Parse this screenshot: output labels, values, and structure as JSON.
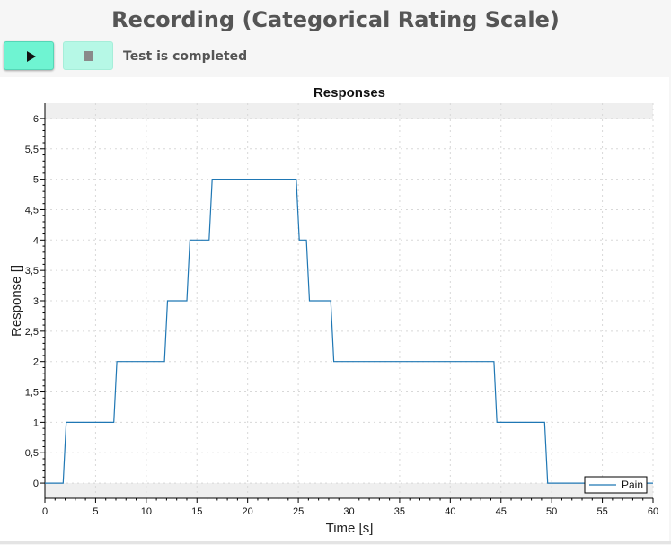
{
  "header": {
    "title": "Recording (Categorical Rating Scale)"
  },
  "toolbar": {
    "play_icon": "play-icon",
    "stop_icon": "stop-icon",
    "status_text": "Test is completed",
    "colors": {
      "play_bg": "#6ff4d2",
      "stop_bg": "#b6f8e6"
    }
  },
  "chart_data": {
    "type": "line",
    "title": "Responses",
    "xlabel": "Time [s]",
    "ylabel": "Response []",
    "xlim": [
      0,
      60
    ],
    "ylim": [
      -0.25,
      6.25
    ],
    "xticks": [
      0,
      5,
      10,
      15,
      20,
      25,
      30,
      35,
      40,
      45,
      50,
      55,
      60
    ],
    "xtick_labels": [
      "0",
      "5",
      "10",
      "15",
      "20",
      "25",
      "30",
      "35",
      "40",
      "45",
      "50",
      "55",
      "60"
    ],
    "yticks": [
      0,
      0.5,
      1,
      1.5,
      2,
      2.5,
      3,
      3.5,
      4,
      4.5,
      5,
      5.5,
      6
    ],
    "ytick_labels": [
      "0",
      "0,5",
      "1",
      "1,5",
      "2",
      "2,5",
      "3",
      "3,5",
      "4",
      "4,5",
      "5",
      "5,5",
      "6"
    ],
    "grid": true,
    "legend_position": "bottom-right",
    "series": [
      {
        "name": "Pain",
        "color": "#1f77b4",
        "x": [
          0,
          1.8,
          2.1,
          6.8,
          7.1,
          11.8,
          12.1,
          14.0,
          14.3,
          16.2,
          16.5,
          24.8,
          25.1,
          25.8,
          26.1,
          28.2,
          28.5,
          44.3,
          44.6,
          49.3,
          49.6,
          60
        ],
        "y": [
          0,
          0,
          1,
          1,
          2,
          2,
          3,
          3,
          4,
          4,
          5,
          5,
          4,
          4,
          3,
          3,
          2,
          2,
          1,
          1,
          0,
          0
        ]
      }
    ]
  }
}
